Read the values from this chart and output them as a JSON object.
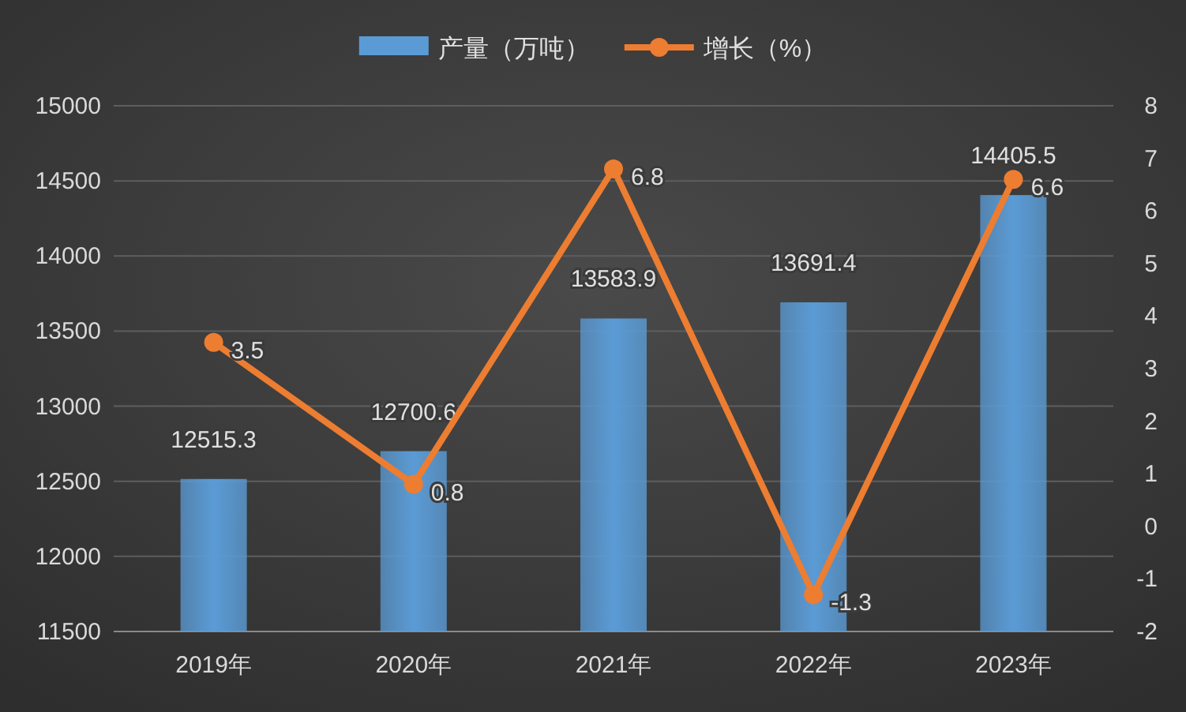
{
  "chart_data": {
    "type": "bar",
    "categories": [
      "2019年",
      "2020年",
      "2021年",
      "2022年",
      "2023年"
    ],
    "series": [
      {
        "name": "产量（万吨）",
        "color": "#5b9bd5",
        "values": [
          12515.3,
          12700.6,
          13583.9,
          13691.4,
          14405.5
        ]
      },
      {
        "name": "增长（%）",
        "type": "line",
        "axis": "y2",
        "color": "#ed7d31",
        "values": [
          3.5,
          0.8,
          6.8,
          -1.3,
          6.6
        ]
      }
    ],
    "ylim": [
      11500,
      15000
    ],
    "yticks": [
      11500,
      12000,
      12500,
      13000,
      13500,
      14000,
      14500,
      15000
    ],
    "y2lim": [
      -2,
      8
    ],
    "y2ticks": [
      -2,
      -1,
      0,
      1,
      2,
      3,
      4,
      5,
      6,
      7,
      8
    ],
    "grid": "y",
    "legend": "top",
    "data_labels": true,
    "marker": "circle"
  }
}
